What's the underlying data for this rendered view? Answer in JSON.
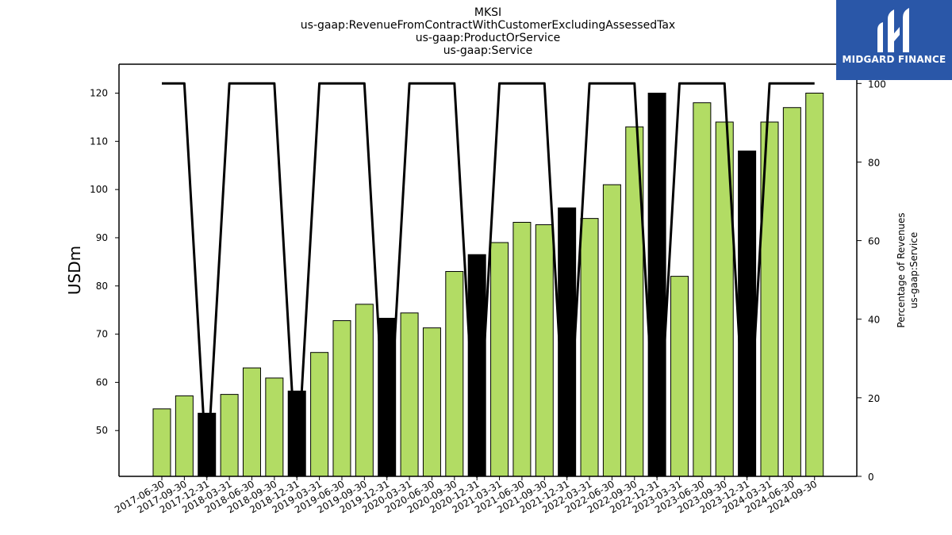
{
  "logo": {
    "text": "MIDGARD FINANCE"
  },
  "chart_data": {
    "type": "bar",
    "title_lines": [
      "MKSI",
      "us-gaap:RevenueFromContractWithCustomerExcludingAssessedTax",
      "us-gaap:ProductOrService",
      "us-gaap:Service"
    ],
    "ylabel": "USDm",
    "y2label_lines": [
      "Percentage of Revenues",
      "us-gaap:Service"
    ],
    "ylim": [
      40.5,
      126
    ],
    "y2lim": [
      0,
      104.9
    ],
    "yticks": [
      50,
      60,
      70,
      80,
      90,
      100,
      110,
      120
    ],
    "y2ticks": [
      0,
      20,
      40,
      60,
      80,
      100
    ],
    "colors": {
      "bar": "#b2dc64",
      "highlight": "#000000",
      "line": "#000000",
      "edge": "#000000"
    },
    "categories": [
      "2017-06-30",
      "2017-09-30",
      "2017-12-31",
      "2018-03-31",
      "2018-06-30",
      "2018-09-30",
      "2018-12-31",
      "2019-03-31",
      "2019-06-30",
      "2019-09-30",
      "2019-12-31",
      "2020-03-31",
      "2020-06-30",
      "2020-09-30",
      "2020-12-31",
      "2021-03-31",
      "2021-06-30",
      "2021-09-30",
      "2021-12-31",
      "2022-03-31",
      "2022-06-30",
      "2022-09-30",
      "2022-12-31",
      "2023-03-31",
      "2023-06-30",
      "2023-09-30",
      "2023-12-31",
      "2024-03-31",
      "2024-06-30",
      "2024-09-30"
    ],
    "series": [
      {
        "type": "bar",
        "axis": "left",
        "values": [
          54.5,
          57.2,
          53.6,
          57.5,
          63.0,
          60.9,
          58.2,
          66.2,
          72.8,
          76.2,
          73.3,
          74.4,
          71.3,
          83.0,
          86.5,
          89.0,
          93.2,
          92.7,
          96.2,
          94.0,
          101.0,
          113.0,
          120.0,
          82.0,
          118.0,
          114.0,
          108.0,
          114.0,
          117.0,
          120.0
        ],
        "highlight": [
          false,
          false,
          true,
          false,
          false,
          false,
          true,
          false,
          false,
          false,
          true,
          false,
          false,
          false,
          true,
          false,
          false,
          false,
          true,
          false,
          false,
          false,
          true,
          false,
          false,
          false,
          true,
          false,
          false,
          false
        ]
      },
      {
        "type": "line",
        "axis": "right",
        "values": [
          100,
          100,
          0,
          100,
          100,
          100,
          0,
          100,
          100,
          100,
          0,
          100,
          100,
          100,
          0,
          100,
          100,
          100,
          0,
          100,
          100,
          100,
          0,
          100,
          100,
          100,
          0,
          100,
          100,
          100
        ]
      }
    ]
  }
}
